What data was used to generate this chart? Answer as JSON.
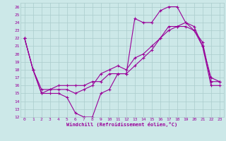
{
  "xlabel": "Windchill (Refroidissement éolien,°C)",
  "bg_color": "#cce8e8",
  "grid_color": "#aacccc",
  "line_color": "#990099",
  "xlim": [
    -0.5,
    23.5
  ],
  "ylim": [
    12,
    26.5
  ],
  "xticks": [
    0,
    1,
    2,
    3,
    4,
    5,
    6,
    7,
    8,
    9,
    10,
    11,
    12,
    13,
    14,
    15,
    16,
    17,
    18,
    19,
    20,
    21,
    22,
    23
  ],
  "yticks": [
    12,
    13,
    14,
    15,
    16,
    17,
    18,
    19,
    20,
    21,
    22,
    23,
    24,
    25,
    26
  ],
  "line1_x": [
    0,
    1,
    2,
    3,
    4,
    5,
    6,
    7,
    8,
    9,
    10,
    11,
    12,
    13,
    14,
    15,
    16,
    17,
    18,
    19,
    20,
    21,
    22,
    23
  ],
  "line1_y": [
    22,
    18,
    15,
    15,
    15,
    14.5,
    12.5,
    12,
    12,
    15,
    15.5,
    17.5,
    17.5,
    24.5,
    24,
    24,
    25.5,
    26,
    26,
    24,
    23.5,
    21,
    16,
    16
  ],
  "line2_x": [
    0,
    1,
    2,
    3,
    4,
    5,
    6,
    7,
    8,
    9,
    10,
    11,
    12,
    13,
    14,
    15,
    16,
    17,
    18,
    19,
    20,
    21,
    22,
    23
  ],
  "line2_y": [
    22,
    18,
    15.5,
    15.5,
    16,
    16,
    16,
    16,
    16.5,
    16.5,
    17.5,
    17.5,
    17.5,
    18.5,
    19.5,
    20.5,
    22,
    23,
    23.5,
    24,
    23,
    21.5,
    16.5,
    16.5
  ],
  "line3_x": [
    0,
    1,
    2,
    3,
    4,
    5,
    6,
    7,
    8,
    9,
    10,
    11,
    12,
    13,
    14,
    15,
    16,
    17,
    18,
    19,
    20,
    21,
    22,
    23
  ],
  "line3_y": [
    22,
    18,
    15,
    15.5,
    15.5,
    15.5,
    15,
    15.5,
    16,
    17.5,
    18,
    18.5,
    18,
    19.5,
    20,
    21,
    22,
    23.5,
    23.5,
    23.5,
    23,
    21,
    17,
    16.5
  ]
}
